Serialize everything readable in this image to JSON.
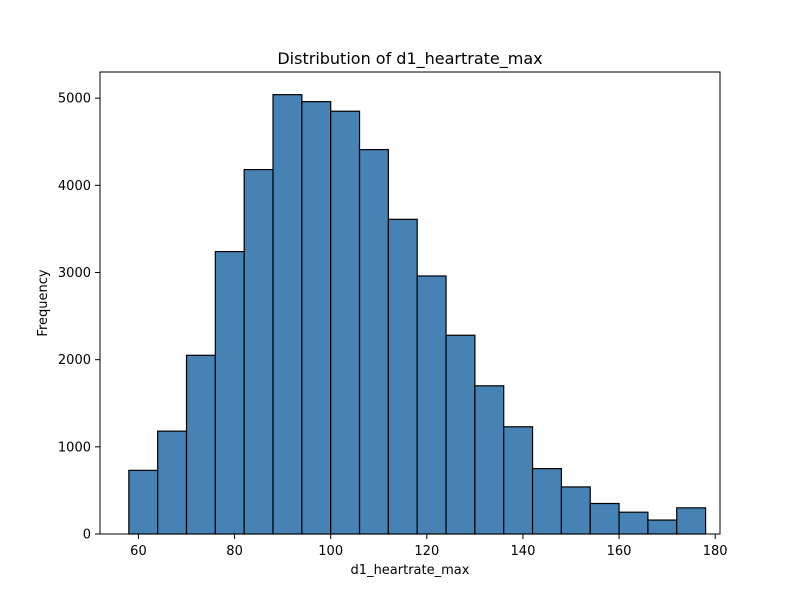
{
  "chart_data": {
    "type": "bar",
    "title": "Distribution of d1_heartrate_max",
    "xlabel": "d1_heartrate_max",
    "ylabel": "Frequency",
    "xlim": [
      52,
      181
    ],
    "ylim": [
      0,
      5300
    ],
    "xticks": [
      60,
      80,
      100,
      120,
      140,
      160,
      180
    ],
    "yticks": [
      0,
      1000,
      2000,
      3000,
      4000,
      5000
    ],
    "grid": false,
    "bar_color": "#4682b4",
    "edge_color": "#000000",
    "bins": [
      {
        "x0": 58,
        "x1": 64,
        "value": 730
      },
      {
        "x0": 64,
        "x1": 70,
        "value": 1180
      },
      {
        "x0": 70,
        "x1": 76,
        "value": 2050
      },
      {
        "x0": 76,
        "x1": 82,
        "value": 3240
      },
      {
        "x0": 82,
        "x1": 88,
        "value": 4180
      },
      {
        "x0": 88,
        "x1": 94,
        "value": 5040
      },
      {
        "x0": 94,
        "x1": 100,
        "value": 4960
      },
      {
        "x0": 100,
        "x1": 106,
        "value": 4850
      },
      {
        "x0": 106,
        "x1": 112,
        "value": 4410
      },
      {
        "x0": 112,
        "x1": 118,
        "value": 3610
      },
      {
        "x0": 118,
        "x1": 124,
        "value": 2960
      },
      {
        "x0": 124,
        "x1": 130,
        "value": 2280
      },
      {
        "x0": 130,
        "x1": 136,
        "value": 1700
      },
      {
        "x0": 136,
        "x1": 142,
        "value": 1230
      },
      {
        "x0": 142,
        "x1": 148,
        "value": 750
      },
      {
        "x0": 148,
        "x1": 154,
        "value": 540
      },
      {
        "x0": 154,
        "x1": 160,
        "value": 350
      },
      {
        "x0": 160,
        "x1": 166,
        "value": 250
      },
      {
        "x0": 166,
        "x1": 172,
        "value": 160
      },
      {
        "x0": 172,
        "x1": 178,
        "value": 300
      }
    ]
  }
}
